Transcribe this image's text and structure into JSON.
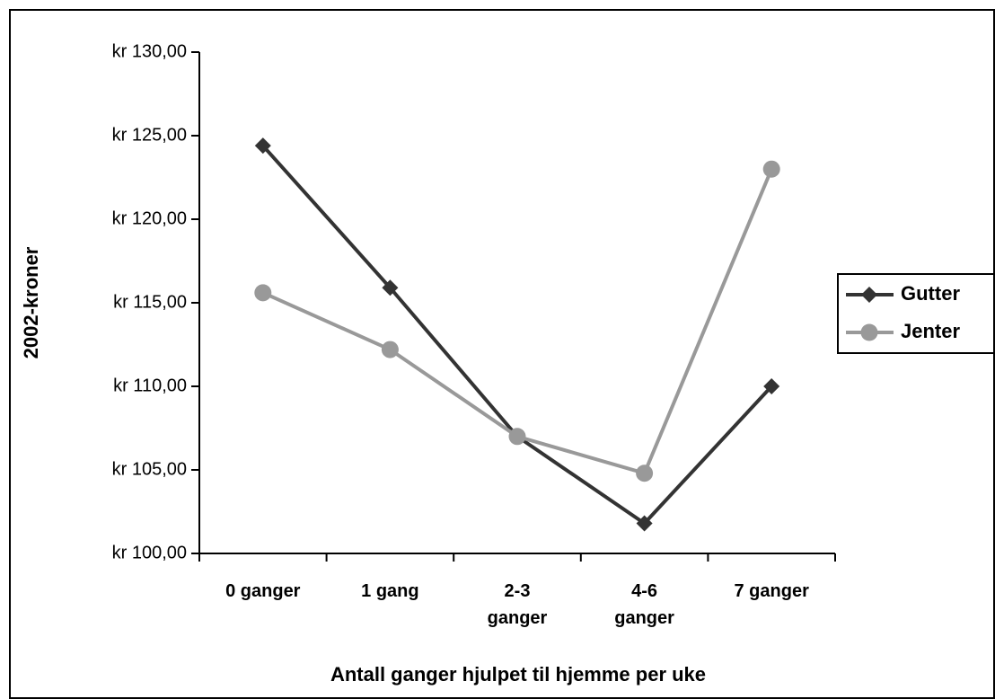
{
  "chart_data": {
    "type": "line",
    "xlabel": "Antall ganger hjulpet til hjemme per uke",
    "ylabel": "2002-kroner",
    "categories": [
      "0 ganger",
      "1 gang",
      "2-3 ganger",
      "4-6 ganger",
      "7 ganger"
    ],
    "series": [
      {
        "name": "Gutter",
        "color": "#333333",
        "marker": "diamond",
        "values": [
          124.4,
          115.9,
          107.0,
          101.8,
          110.0
        ]
      },
      {
        "name": "Jenter",
        "color": "#999999",
        "marker": "circle",
        "values": [
          115.6,
          112.2,
          107.0,
          104.8,
          123.0
        ]
      }
    ],
    "ylim": [
      100,
      130
    ],
    "yticks": [
      {
        "value": 100,
        "label": "kr 100,00"
      },
      {
        "value": 105,
        "label": "kr 105,00"
      },
      {
        "value": 110,
        "label": "kr 110,00"
      },
      {
        "value": 115,
        "label": "kr 115,00"
      },
      {
        "value": 120,
        "label": "kr 120,00"
      },
      {
        "value": 125,
        "label": "kr 125,00"
      },
      {
        "value": 130,
        "label": "kr 130,00"
      }
    ],
    "grid": false,
    "legend": "right"
  }
}
